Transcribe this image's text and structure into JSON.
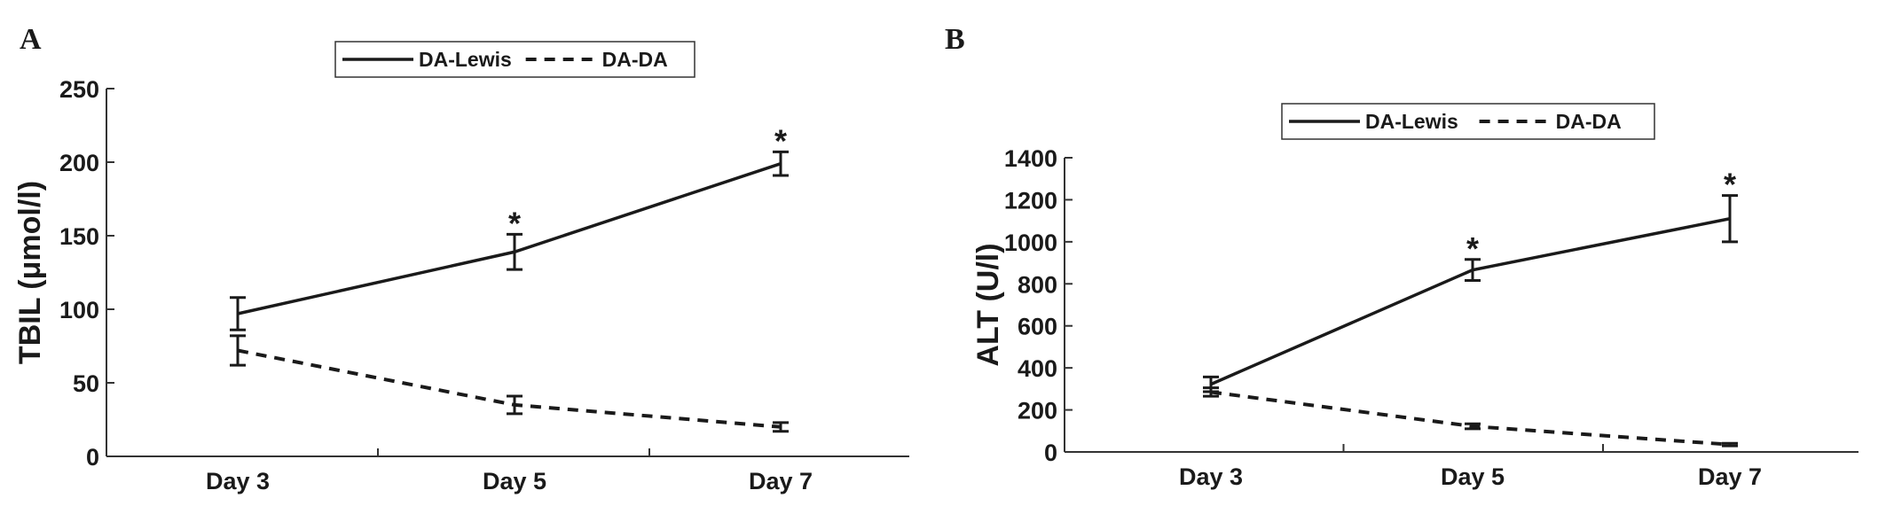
{
  "chart_data": [
    {
      "panel": "A",
      "type": "line",
      "categories": [
        "Day 3",
        "Day 5",
        "Day 7"
      ],
      "ylabel": "TBIL (μmol/l)",
      "ylim": [
        0,
        250
      ],
      "yticks": [
        "0",
        "50",
        "100",
        "150",
        "200",
        "250"
      ],
      "legend": "top-center",
      "series": [
        {
          "name": "DA-Lewis",
          "style": "solid",
          "values": [
            97,
            139,
            199
          ],
          "err": [
            11,
            12,
            8
          ]
        },
        {
          "name": "DA-DA",
          "style": "dashed",
          "values": [
            72,
            35,
            20
          ],
          "err": [
            10,
            6,
            3
          ]
        }
      ],
      "annotations": [
        {
          "category": "Day 5",
          "text": "*"
        },
        {
          "category": "Day 7",
          "text": "*"
        }
      ]
    },
    {
      "panel": "B",
      "type": "line",
      "categories": [
        "Day 3",
        "Day 5",
        "Day 7"
      ],
      "ylabel": "ALT (U/l)",
      "ylim": [
        0,
        1400
      ],
      "yticks": [
        "0",
        "200",
        "400",
        "600",
        "800",
        "1000",
        "1200",
        "1400"
      ],
      "legend": "top-center",
      "series": [
        {
          "name": "DA-Lewis",
          "style": "solid",
          "values": [
            322,
            866,
            1110
          ],
          "err": [
            35,
            50,
            110
          ]
        },
        {
          "name": "DA-DA",
          "style": "dashed",
          "values": [
            285,
            122,
            35
          ],
          "err": [
            20,
            12,
            6
          ]
        }
      ],
      "annotations": [
        {
          "category": "Day 5",
          "text": "*"
        },
        {
          "category": "Day 7",
          "text": "*"
        }
      ]
    }
  ],
  "colors": {
    "line": "#1a1a1a",
    "axis": "#333333"
  }
}
